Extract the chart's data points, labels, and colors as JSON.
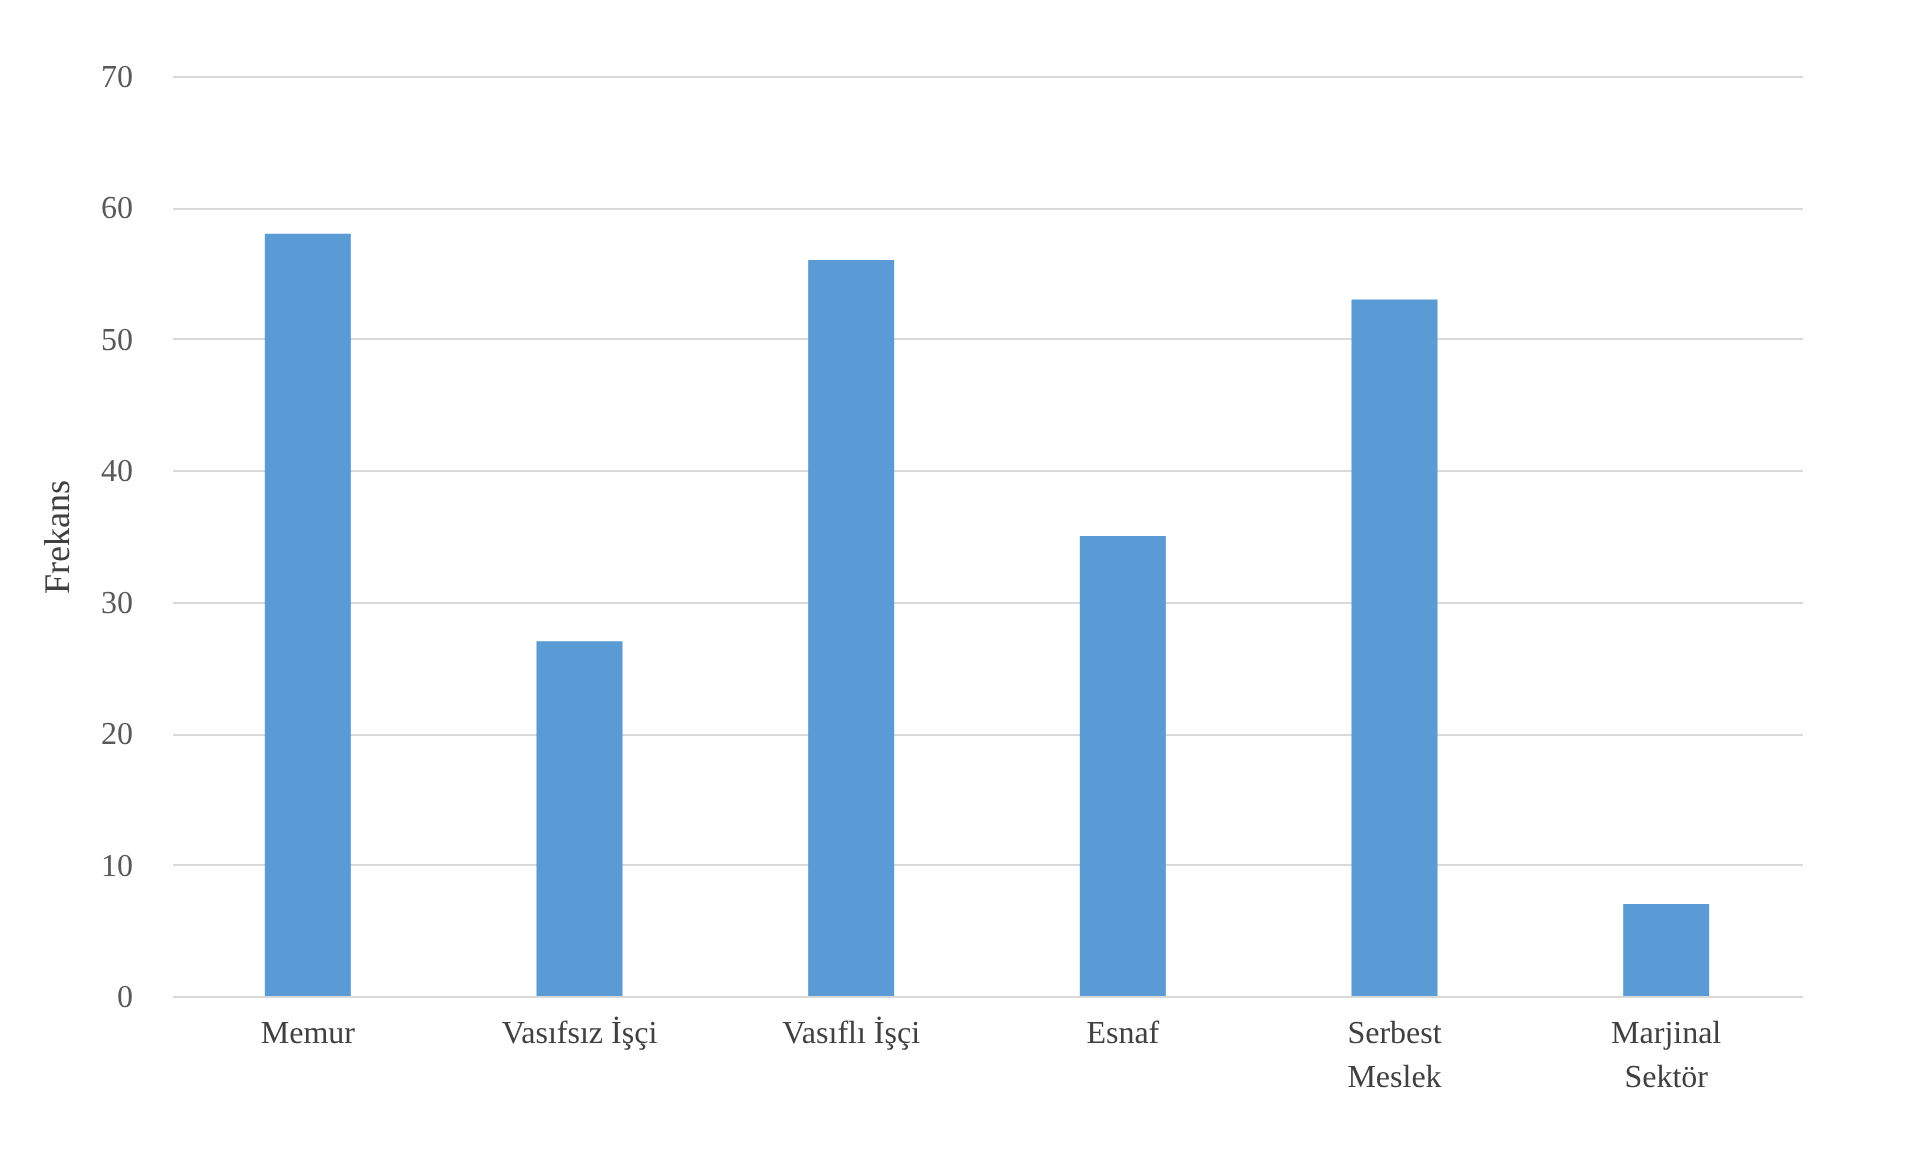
{
  "chart_data": {
    "type": "bar",
    "ylabel": "Frekans",
    "categories": [
      "Memur",
      "Vasıfsız İşçi",
      "Vasıflı İşçi",
      "Esnaf",
      "Serbest Meslek",
      "Marjinal Sektör"
    ],
    "values": [
      58,
      27,
      56,
      35,
      53,
      7
    ],
    "color": "#5b9bd5",
    "ylim": [
      0,
      70
    ],
    "yticks": [
      0,
      10,
      20,
      30,
      40,
      50,
      60,
      70
    ],
    "grid": "y"
  }
}
